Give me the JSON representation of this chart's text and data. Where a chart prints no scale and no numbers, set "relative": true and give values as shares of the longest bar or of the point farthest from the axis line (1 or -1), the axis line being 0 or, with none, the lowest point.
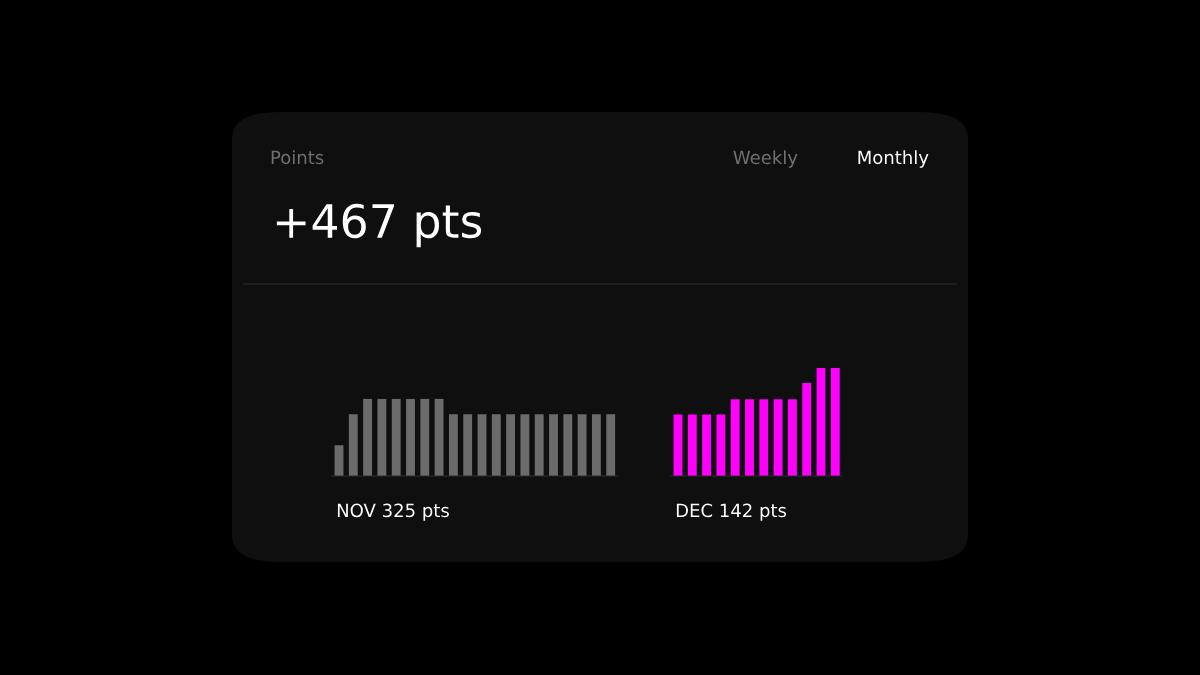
{
  "chart_data": [
    {
      "type": "other",
      "title": "Points",
      "subtitle": "+467 pts",
      "annotations": [
        "Weekly",
        "Monthly"
      ]
    },
    {
      "type": "bar",
      "relative": true,
      "color": "#6b6b6b",
      "annotations": [
        "NOV 325 pts"
      ],
      "categories": [
        null,
        null,
        null,
        null,
        null,
        null,
        null,
        null,
        null,
        null,
        null,
        null,
        null,
        null,
        null,
        null,
        null,
        null,
        null,
        null
      ],
      "values": [
        0.4,
        0.8,
        1,
        1,
        1,
        1,
        1,
        1,
        0.8,
        0.8,
        0.8,
        0.8,
        0.8,
        0.8,
        0.8,
        0.8,
        0.8,
        0.8,
        0.8,
        0.8
      ]
    },
    {
      "type": "bar",
      "relative": true,
      "color": "#ff00ff",
      "annotations": [
        "DEC 142 pts"
      ],
      "categories": [
        null,
        null,
        null,
        null,
        null,
        null,
        null,
        null,
        null,
        null,
        null,
        null
      ],
      "values": [
        0.57,
        0.57,
        0.57,
        0.57,
        0.71,
        0.71,
        0.71,
        0.71,
        0.71,
        0.86,
        1,
        1
      ]
    }
  ]
}
